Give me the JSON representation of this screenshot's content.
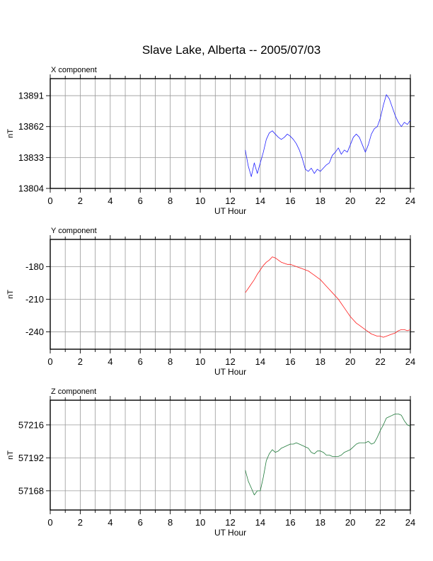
{
  "title": "Slave Lake, Alberta -- 2005/07/03",
  "colors": {
    "x": "#2020ff",
    "y": "#ff1a1a",
    "z": "#1f7a3a"
  },
  "chart_data": [
    {
      "type": "line",
      "component_label": "X component",
      "xlabel": "UT Hour",
      "ylabel": "nT",
      "xlim": [
        0,
        24
      ],
      "x_ticks": [
        0,
        2,
        4,
        6,
        8,
        10,
        12,
        14,
        16,
        18,
        20,
        22,
        24
      ],
      "ylim": [
        13804,
        13907
      ],
      "y_ticks": [
        13804,
        13833,
        13862,
        13891
      ],
      "grid": true,
      "series": [
        {
          "color": "#2020ff",
          "x": [
            13.0,
            13.2,
            13.4,
            13.6,
            13.8,
            14.0,
            14.2,
            14.4,
            14.6,
            14.8,
            15.0,
            15.2,
            15.4,
            15.6,
            15.8,
            16.0,
            16.2,
            16.4,
            16.6,
            16.8,
            17.0,
            17.2,
            17.4,
            17.6,
            17.8,
            18.0,
            18.2,
            18.4,
            18.6,
            18.8,
            19.0,
            19.2,
            19.4,
            19.6,
            19.8,
            20.0,
            20.2,
            20.4,
            20.6,
            20.8,
            21.0,
            21.2,
            21.4,
            21.6,
            21.8,
            22.0,
            22.2,
            22.4,
            22.6,
            22.8,
            23.0,
            23.2,
            23.4,
            23.6,
            23.8,
            24.0
          ],
          "y": [
            13840,
            13825,
            13815,
            13828,
            13818,
            13828,
            13838,
            13850,
            13856,
            13858,
            13855,
            13852,
            13850,
            13852,
            13855,
            13853,
            13850,
            13846,
            13840,
            13832,
            13822,
            13820,
            13823,
            13818,
            13822,
            13820,
            13823,
            13826,
            13828,
            13835,
            13838,
            13842,
            13836,
            13840,
            13838,
            13845,
            13852,
            13855,
            13852,
            13845,
            13838,
            13845,
            13855,
            13860,
            13862,
            13870,
            13882,
            13892,
            13888,
            13880,
            13872,
            13866,
            13862,
            13866,
            13864,
            13868
          ]
        }
      ]
    },
    {
      "type": "line",
      "component_label": "Y component",
      "xlabel": "UT Hour",
      "ylabel": "nT",
      "xlim": [
        0,
        24
      ],
      "x_ticks": [
        0,
        2,
        4,
        6,
        8,
        10,
        12,
        14,
        16,
        18,
        20,
        22,
        24
      ],
      "ylim": [
        -256,
        -155
      ],
      "y_ticks": [
        -180,
        -210,
        -240
      ],
      "grid": true,
      "series": [
        {
          "color": "#ff1a1a",
          "x": [
            13.0,
            13.2,
            13.4,
            13.6,
            13.8,
            14.0,
            14.2,
            14.4,
            14.6,
            14.8,
            15.0,
            15.2,
            15.4,
            15.6,
            15.8,
            16.0,
            16.2,
            16.4,
            16.6,
            16.8,
            17.0,
            17.2,
            17.4,
            17.6,
            17.8,
            18.0,
            18.2,
            18.4,
            18.6,
            18.8,
            19.0,
            19.2,
            19.4,
            19.6,
            19.8,
            20.0,
            20.2,
            20.4,
            20.6,
            20.8,
            21.0,
            21.2,
            21.4,
            21.6,
            21.8,
            22.0,
            22.2,
            22.4,
            22.6,
            22.8,
            23.0,
            23.2,
            23.4,
            23.6,
            23.8,
            24.0
          ],
          "y": [
            -204,
            -200,
            -196,
            -192,
            -187,
            -183,
            -179,
            -176,
            -174,
            -171,
            -172,
            -174,
            -176,
            -177,
            -178,
            -178,
            -179,
            -180,
            -181,
            -182,
            -183,
            -184,
            -186,
            -188,
            -190,
            -192,
            -195,
            -198,
            -201,
            -204,
            -207,
            -210,
            -214,
            -218,
            -222,
            -226,
            -229,
            -232,
            -234,
            -236,
            -238,
            -240,
            -242,
            -243,
            -244,
            -244,
            -245,
            -244,
            -243,
            -242,
            -241,
            -239,
            -238,
            -238,
            -239,
            -238
          ]
        }
      ]
    },
    {
      "type": "line",
      "component_label": "Z component",
      "xlabel": "UT Hour",
      "ylabel": "nT",
      "xlim": [
        0,
        24
      ],
      "x_ticks": [
        0,
        2,
        4,
        6,
        8,
        10,
        12,
        14,
        16,
        18,
        20,
        22,
        24
      ],
      "ylim": [
        57154,
        57234
      ],
      "y_ticks": [
        57168,
        57192,
        57216
      ],
      "grid": true,
      "series": [
        {
          "color": "#1f7a3a",
          "x": [
            13.0,
            13.2,
            13.4,
            13.6,
            13.8,
            14.0,
            14.2,
            14.4,
            14.6,
            14.8,
            15.0,
            15.2,
            15.4,
            15.6,
            15.8,
            16.0,
            16.2,
            16.4,
            16.6,
            16.8,
            17.0,
            17.2,
            17.4,
            17.6,
            17.8,
            18.0,
            18.2,
            18.4,
            18.6,
            18.8,
            19.0,
            19.2,
            19.4,
            19.6,
            19.8,
            20.0,
            20.2,
            20.4,
            20.6,
            20.8,
            21.0,
            21.2,
            21.4,
            21.6,
            21.8,
            22.0,
            22.2,
            22.4,
            22.6,
            22.8,
            23.0,
            23.2,
            23.4,
            23.6,
            23.8,
            24.0
          ],
          "y": [
            57183,
            57175,
            57170,
            57165,
            57168,
            57168,
            57178,
            57190,
            57195,
            57198,
            57196,
            57197,
            57199,
            57200,
            57201,
            57202,
            57202,
            57203,
            57202,
            57201,
            57200,
            57199,
            57196,
            57195,
            57197,
            57197,
            57196,
            57194,
            57194,
            57193,
            57193,
            57193,
            57194,
            57196,
            57197,
            57198,
            57200,
            57202,
            57203,
            57203,
            57203,
            57204,
            57202,
            57203,
            57207,
            57212,
            57216,
            57221,
            57222,
            57223,
            57224,
            57224,
            57223,
            57219,
            57216,
            57215
          ]
        }
      ]
    }
  ]
}
